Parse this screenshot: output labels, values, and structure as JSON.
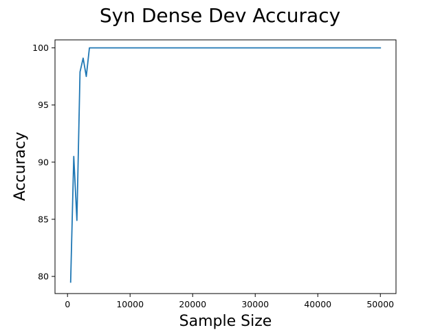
{
  "chart_data": {
    "type": "line",
    "title": "Syn Dense Dev Accuracy",
    "xlabel": "Sample Size",
    "ylabel": "Accuracy",
    "xlim": [
      -2000,
      52500
    ],
    "ylim": [
      78.5,
      100.7
    ],
    "xticks": [
      0,
      10000,
      20000,
      30000,
      40000,
      50000
    ],
    "yticks": [
      80,
      85,
      90,
      95,
      100
    ],
    "grid": false,
    "series": [
      {
        "color": "#1f77b4",
        "x": [
          500,
          1000,
          1500,
          2000,
          2500,
          3000,
          3500,
          4000,
          5000,
          10000,
          20000,
          30000,
          40000,
          50000
        ],
        "y": [
          79.5,
          90.5,
          84.9,
          97.9,
          99.1,
          97.5,
          100.0,
          100.0,
          100.0,
          100.0,
          100.0,
          100.0,
          100.0,
          100.0
        ]
      }
    ]
  }
}
